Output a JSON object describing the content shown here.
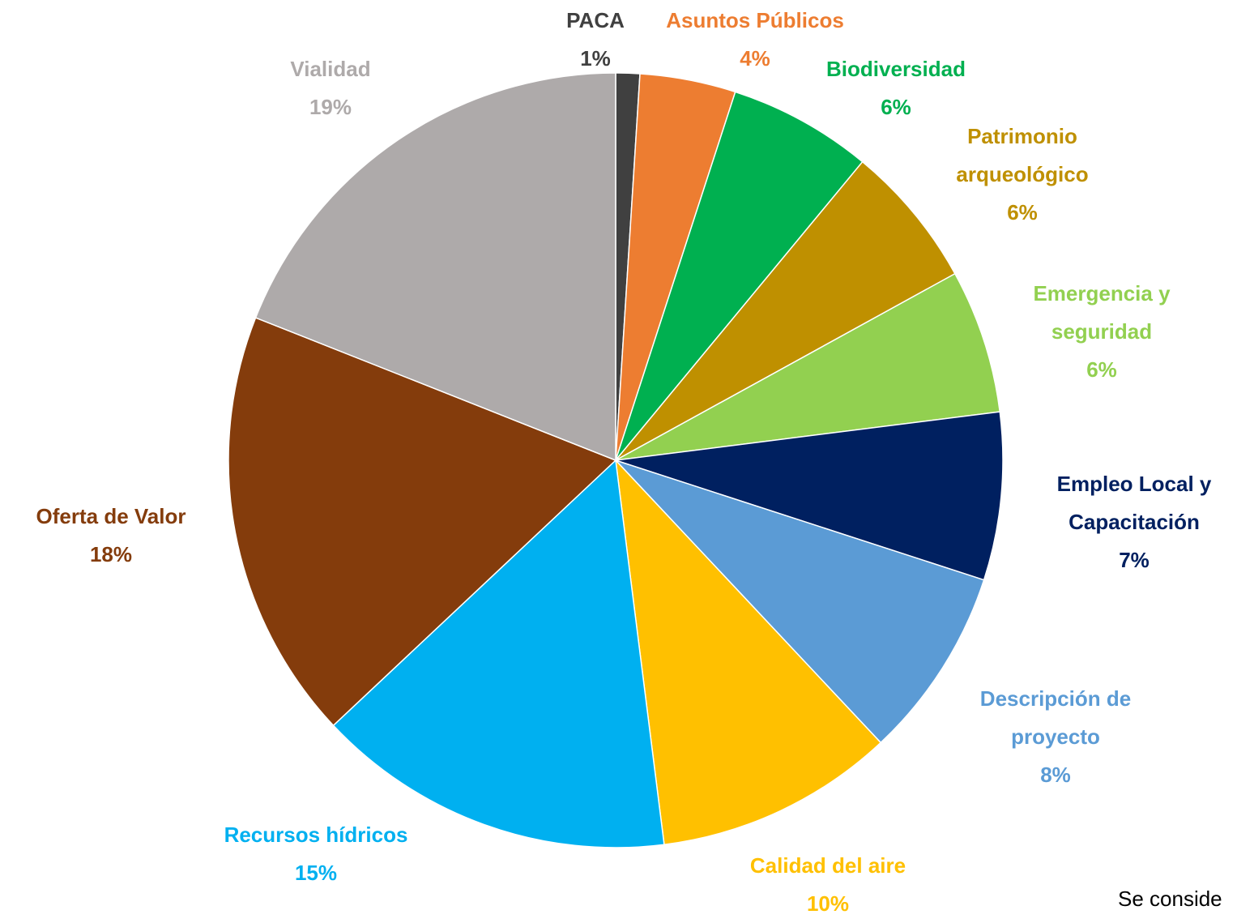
{
  "chart_data": {
    "type": "pie",
    "categories": [
      "PACA",
      "Asuntos Públicos",
      "Biodiversidad",
      "Patrimonio arqueológico",
      "Emergencia y seguridad",
      "Empleo Local y Capacitación",
      "Descripción de proyecto",
      "Calidad del aire",
      "Recursos hídricos",
      "Oferta de Valor",
      "Vialidad"
    ],
    "values": [
      1,
      4,
      6,
      6,
      6,
      7,
      8,
      10,
      15,
      18,
      19
    ],
    "value_labels": [
      "1%",
      "4%",
      "6%",
      "6%",
      "6%",
      "7%",
      "8%",
      "10%",
      "15%",
      "18%",
      "19%"
    ],
    "colors": [
      "#404040",
      "#ed7d31",
      "#00b050",
      "#bf9000",
      "#92d050",
      "#002060",
      "#5b9bd5",
      "#ffc000",
      "#00b0f0",
      "#843c0c",
      "#aeaaaa"
    ],
    "footnote": "Se conside"
  }
}
